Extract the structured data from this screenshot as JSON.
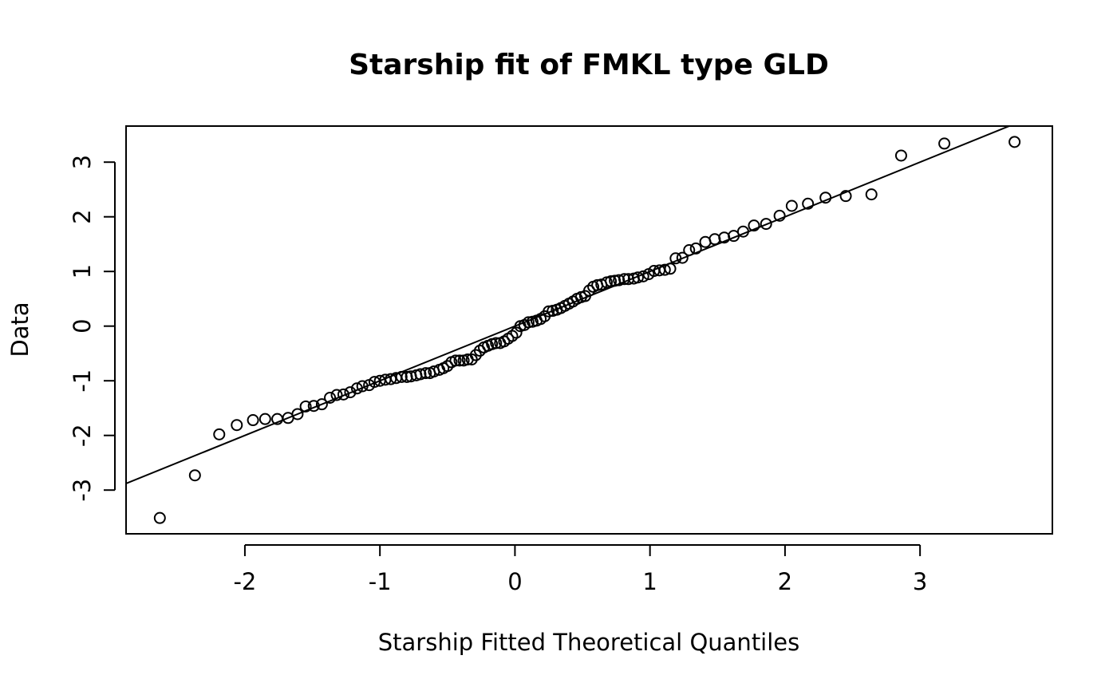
{
  "chart_data": {
    "type": "scatter",
    "title": "Starship fit of FMKL type GLD",
    "xlabel": "Starship  Fitted Theoretical Quantiles",
    "ylabel": "Data",
    "xlim": [
      -2.88,
      3.98
    ],
    "ylim": [
      -3.8,
      3.66
    ],
    "x_ticks": [
      -2,
      -1,
      0,
      1,
      2,
      3
    ],
    "x_tick_labels": [
      "-2",
      "-1",
      "0",
      "1",
      "2",
      "3"
    ],
    "y_ticks": [
      -3,
      -2,
      -1,
      0,
      1,
      2,
      3
    ],
    "y_tick_labels": [
      "-3",
      "-2",
      "-1",
      "0",
      "1",
      "2",
      "3"
    ],
    "grid": false,
    "reference_line": {
      "intercept": 0.0,
      "slope": 1.0
    },
    "series": [
      {
        "points": [
          [
            -2.63,
            -3.51
          ],
          [
            -2.37,
            -2.73
          ],
          [
            -2.19,
            -1.98
          ],
          [
            -2.06,
            -1.81
          ],
          [
            -1.94,
            -1.72
          ],
          [
            -1.85,
            -1.7
          ],
          [
            -1.76,
            -1.7
          ],
          [
            -1.68,
            -1.68
          ],
          [
            -1.61,
            -1.61
          ],
          [
            -1.55,
            -1.47
          ],
          [
            -1.49,
            -1.46
          ],
          [
            -1.43,
            -1.43
          ],
          [
            -1.37,
            -1.31
          ],
          [
            -1.32,
            -1.26
          ],
          [
            -1.27,
            -1.25
          ],
          [
            -1.22,
            -1.21
          ],
          [
            -1.17,
            -1.14
          ],
          [
            -1.13,
            -1.1
          ],
          [
            -1.08,
            -1.08
          ],
          [
            -1.04,
            -1.02
          ],
          [
            -1.0,
            -1.0
          ],
          [
            -0.96,
            -0.98
          ],
          [
            -0.92,
            -0.97
          ],
          [
            -0.88,
            -0.95
          ],
          [
            -0.84,
            -0.93
          ],
          [
            -0.8,
            -0.93
          ],
          [
            -0.77,
            -0.92
          ],
          [
            -0.73,
            -0.9
          ],
          [
            -0.7,
            -0.88
          ],
          [
            -0.66,
            -0.86
          ],
          [
            -0.63,
            -0.86
          ],
          [
            -0.6,
            -0.83
          ],
          [
            -0.56,
            -0.8
          ],
          [
            -0.53,
            -0.77
          ],
          [
            -0.5,
            -0.73
          ],
          [
            -0.47,
            -0.66
          ],
          [
            -0.44,
            -0.63
          ],
          [
            -0.41,
            -0.63
          ],
          [
            -0.38,
            -0.63
          ],
          [
            -0.35,
            -0.61
          ],
          [
            -0.32,
            -0.61
          ],
          [
            -0.29,
            -0.53
          ],
          [
            -0.26,
            -0.45
          ],
          [
            -0.23,
            -0.39
          ],
          [
            -0.2,
            -0.36
          ],
          [
            -0.17,
            -0.33
          ],
          [
            -0.14,
            -0.31
          ],
          [
            -0.11,
            -0.31
          ],
          [
            -0.08,
            -0.28
          ],
          [
            -0.05,
            -0.23
          ],
          [
            -0.02,
            -0.18
          ],
          [
            0.01,
            -0.12
          ],
          [
            0.04,
            0.0
          ],
          [
            0.07,
            0.02
          ],
          [
            0.1,
            0.07
          ],
          [
            0.13,
            0.08
          ],
          [
            0.16,
            0.1
          ],
          [
            0.19,
            0.13
          ],
          [
            0.22,
            0.18
          ],
          [
            0.25,
            0.27
          ],
          [
            0.28,
            0.28
          ],
          [
            0.31,
            0.3
          ],
          [
            0.34,
            0.33
          ],
          [
            0.37,
            0.37
          ],
          [
            0.4,
            0.41
          ],
          [
            0.43,
            0.45
          ],
          [
            0.46,
            0.5
          ],
          [
            0.49,
            0.53
          ],
          [
            0.52,
            0.55
          ],
          [
            0.55,
            0.65
          ],
          [
            0.58,
            0.72
          ],
          [
            0.61,
            0.75
          ],
          [
            0.64,
            0.76
          ],
          [
            0.68,
            0.8
          ],
          [
            0.71,
            0.82
          ],
          [
            0.74,
            0.83
          ],
          [
            0.77,
            0.84
          ],
          [
            0.81,
            0.86
          ],
          [
            0.84,
            0.86
          ],
          [
            0.88,
            0.87
          ],
          [
            0.91,
            0.89
          ],
          [
            0.95,
            0.91
          ],
          [
            0.99,
            0.95
          ],
          [
            1.03,
            1.01
          ],
          [
            1.07,
            1.02
          ],
          [
            1.11,
            1.03
          ],
          [
            1.15,
            1.05
          ],
          [
            1.19,
            1.24
          ],
          [
            1.24,
            1.25
          ],
          [
            1.29,
            1.39
          ],
          [
            1.34,
            1.42
          ],
          [
            1.41,
            1.54
          ],
          [
            1.48,
            1.59
          ],
          [
            1.55,
            1.62
          ],
          [
            1.62,
            1.65
          ],
          [
            1.69,
            1.73
          ],
          [
            1.77,
            1.84
          ],
          [
            1.86,
            1.87
          ],
          [
            1.96,
            2.02
          ],
          [
            2.05,
            2.2
          ],
          [
            2.17,
            2.24
          ],
          [
            2.3,
            2.35
          ],
          [
            2.45,
            2.38
          ],
          [
            2.64,
            2.41
          ],
          [
            2.86,
            3.12
          ],
          [
            3.18,
            3.34
          ],
          [
            3.7,
            3.37
          ]
        ]
      }
    ]
  }
}
